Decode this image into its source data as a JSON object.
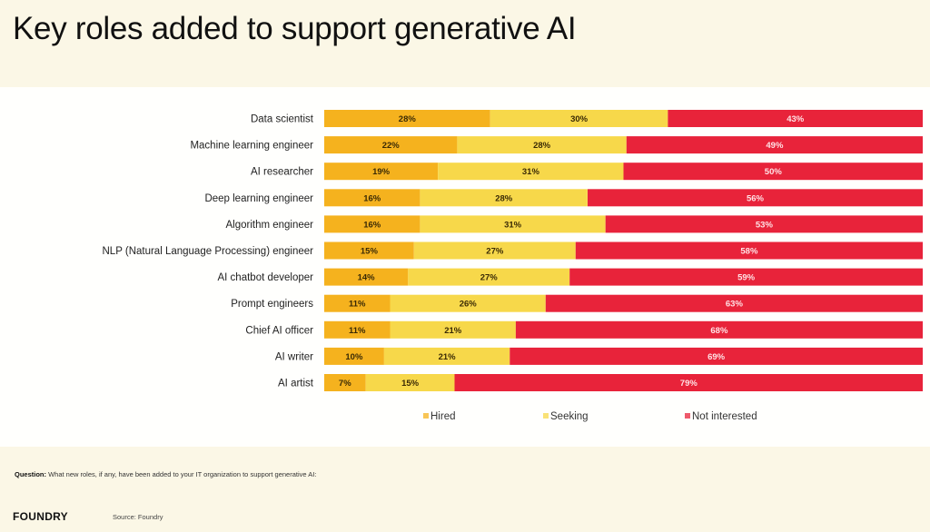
{
  "page": {
    "question_label": "Question:",
    "question_text": " What new roles, if any, have been added to your IT organization to support generative AI:",
    "logo": "FOUNDRY",
    "source": "Source: Foundry"
  },
  "colors": {
    "Hired": "#f5b21e",
    "Seeking": "#f7d84a",
    "Not interested": "#e8233a"
  },
  "chart_data": {
    "type": "bar",
    "orientation": "horizontal",
    "stacked": true,
    "title": "Key roles added to support generative AI",
    "xlabel": "",
    "ylabel": "",
    "xlim": [
      0,
      100
    ],
    "grid": false,
    "legend_position": "bottom",
    "categories": [
      "Data scientist",
      "Machine learning engineer",
      "AI researcher",
      "Deep learning engineer",
      "Algorithm engineer",
      "NLP (Natural Language Processing) engineer",
      "AI chatbot developer",
      "Prompt engineers",
      "Chief AI officer",
      "AI writer",
      "AI artist"
    ],
    "series": [
      {
        "name": "Hired",
        "values": [
          28,
          22,
          19,
          16,
          16,
          15,
          14,
          11,
          11,
          10,
          7
        ]
      },
      {
        "name": "Seeking",
        "values": [
          30,
          28,
          31,
          28,
          31,
          27,
          27,
          26,
          21,
          21,
          15
        ]
      },
      {
        "name": "Not interested",
        "values": [
          43,
          49,
          50,
          56,
          53,
          58,
          59,
          63,
          68,
          69,
          79
        ]
      }
    ],
    "label_format": "{v}%"
  }
}
